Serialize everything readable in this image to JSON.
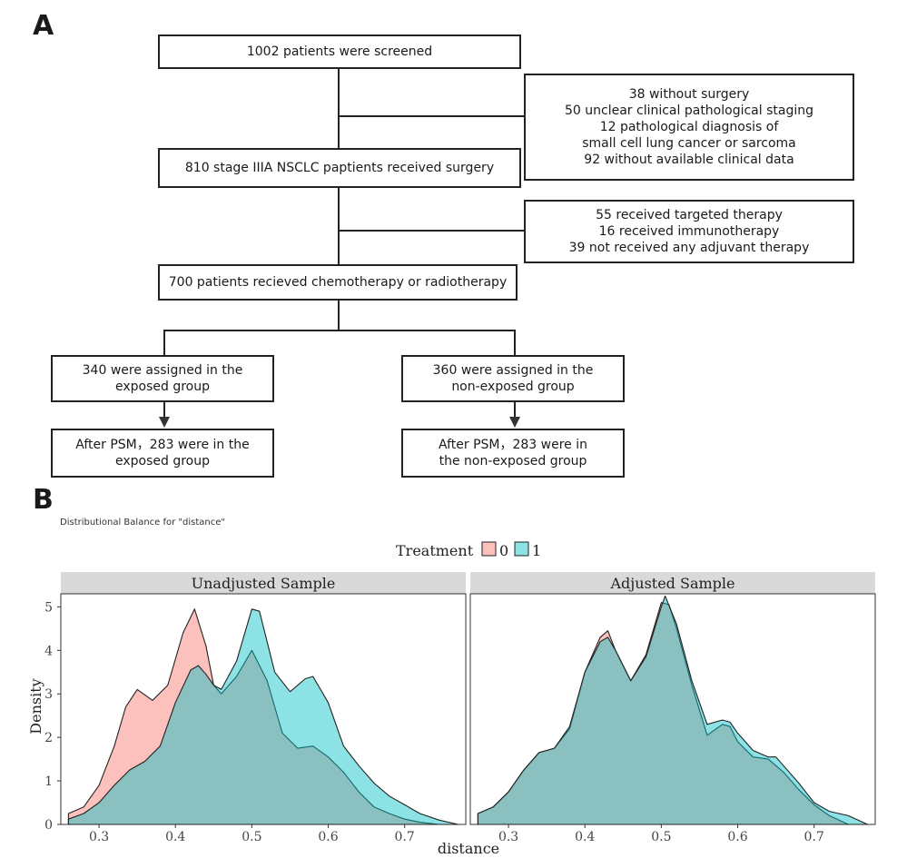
{
  "panel_a": {
    "letter": "A",
    "screened": "1002 patients were screened",
    "exclusion1": [
      "38 without surgery",
      "50 unclear clinical pathological staging",
      "12 pathological diagnosis of",
      "small cell lung cancer or sarcoma",
      "92 without available clinical data"
    ],
    "surgery": "810 stage IIIA NSCLC paptients received surgery",
    "exclusion2": [
      "55 received targeted therapy",
      "16 received immunotherapy",
      "39 not received any adjuvant therapy"
    ],
    "chemo": "700 patients recieved chemotherapy or radiotherapy",
    "exposed": [
      "340 were assigned in the",
      "exposed group"
    ],
    "nonexposed": [
      "360 were assigned in the",
      "non-exposed group"
    ],
    "psm_exposed": [
      "After PSM，283 were in the",
      "exposed group"
    ],
    "psm_nonexposed": [
      "After PSM，283 were  in",
      "the non-exposed group"
    ]
  },
  "panel_b": {
    "letter": "B",
    "subtitle": "Distributional Balance for \"distance\"",
    "legend_title": "Treatment",
    "legend_items": [
      {
        "label": "0",
        "color": "#F8766D"
      },
      {
        "label": "1",
        "color": "#00BFC4"
      }
    ],
    "facet_labels": [
      "Unadjusted Sample",
      "Adjusted Sample"
    ],
    "xlabel": "distance",
    "ylabel": "Density",
    "x_ticks": [
      "0.3",
      "0.4",
      "0.5",
      "0.6",
      "0.7"
    ],
    "y_ticks": [
      "0",
      "1",
      "2",
      "3",
      "4",
      "5"
    ]
  },
  "chart_data": {
    "type": "area",
    "title": "Distributional Balance for \"distance\"",
    "xlabel": "distance",
    "ylabel": "Density",
    "xlim": [
      0.25,
      0.78
    ],
    "ylim": [
      0,
      5.3
    ],
    "legend_title": "Treatment",
    "panels": [
      {
        "label": "Unadjusted Sample",
        "series": [
          {
            "name": "0",
            "color": "#F8766D",
            "x": [
              0.26,
              0.28,
              0.3,
              0.32,
              0.335,
              0.35,
              0.37,
              0.39,
              0.41,
              0.425,
              0.44,
              0.45,
              0.46,
              0.48,
              0.5,
              0.52,
              0.54,
              0.56,
              0.58,
              0.6,
              0.62,
              0.64,
              0.66,
              0.68,
              0.7,
              0.72,
              0.745
            ],
            "y": [
              0.25,
              0.4,
              0.9,
              1.8,
              2.7,
              3.1,
              2.85,
              3.2,
              4.4,
              4.95,
              4.1,
              3.2,
              3.0,
              3.4,
              4.0,
              3.3,
              2.1,
              1.75,
              1.8,
              1.55,
              1.2,
              0.75,
              0.4,
              0.25,
              0.12,
              0.05,
              0.0
            ]
          },
          {
            "name": "1",
            "color": "#00BFC4",
            "x": [
              0.26,
              0.28,
              0.3,
              0.32,
              0.34,
              0.36,
              0.38,
              0.4,
              0.42,
              0.43,
              0.44,
              0.45,
              0.46,
              0.48,
              0.5,
              0.51,
              0.52,
              0.53,
              0.55,
              0.57,
              0.58,
              0.6,
              0.62,
              0.64,
              0.66,
              0.68,
              0.7,
              0.72,
              0.745,
              0.77
            ],
            "y": [
              0.12,
              0.25,
              0.5,
              0.9,
              1.25,
              1.45,
              1.8,
              2.8,
              3.55,
              3.65,
              3.45,
              3.2,
              3.1,
              3.75,
              4.95,
              4.9,
              4.2,
              3.5,
              3.05,
              3.35,
              3.4,
              2.8,
              1.8,
              1.35,
              0.95,
              0.65,
              0.45,
              0.25,
              0.1,
              0.0
            ]
          }
        ]
      },
      {
        "label": "Adjusted Sample",
        "series": [
          {
            "name": "0",
            "color": "#F8766D",
            "x": [
              0.26,
              0.28,
              0.3,
              0.32,
              0.34,
              0.36,
              0.38,
              0.4,
              0.42,
              0.43,
              0.44,
              0.46,
              0.48,
              0.5,
              0.51,
              0.52,
              0.54,
              0.56,
              0.58,
              0.59,
              0.6,
              0.62,
              0.64,
              0.66,
              0.68,
              0.7,
              0.72,
              0.745
            ],
            "y": [
              0.25,
              0.4,
              0.75,
              1.25,
              1.65,
              1.75,
              2.2,
              3.5,
              4.3,
              4.45,
              4.0,
              3.3,
              3.9,
              5.1,
              5.05,
              4.5,
              3.2,
              2.05,
              2.3,
              2.25,
              1.9,
              1.55,
              1.5,
              1.2,
              0.8,
              0.45,
              0.2,
              0.0
            ]
          },
          {
            "name": "1",
            "color": "#00BFC4",
            "x": [
              0.26,
              0.28,
              0.3,
              0.32,
              0.34,
              0.36,
              0.38,
              0.4,
              0.42,
              0.43,
              0.44,
              0.46,
              0.48,
              0.5,
              0.505,
              0.52,
              0.54,
              0.56,
              0.58,
              0.59,
              0.6,
              0.62,
              0.64,
              0.65,
              0.66,
              0.68,
              0.7,
              0.72,
              0.745,
              0.77
            ],
            "y": [
              0.25,
              0.4,
              0.75,
              1.25,
              1.65,
              1.75,
              2.25,
              3.5,
              4.2,
              4.3,
              4.0,
              3.3,
              3.85,
              5.0,
              5.25,
              4.6,
              3.3,
              2.3,
              2.4,
              2.35,
              2.1,
              1.7,
              1.55,
              1.55,
              1.35,
              0.95,
              0.5,
              0.3,
              0.2,
              0.0
            ]
          }
        ]
      }
    ]
  }
}
